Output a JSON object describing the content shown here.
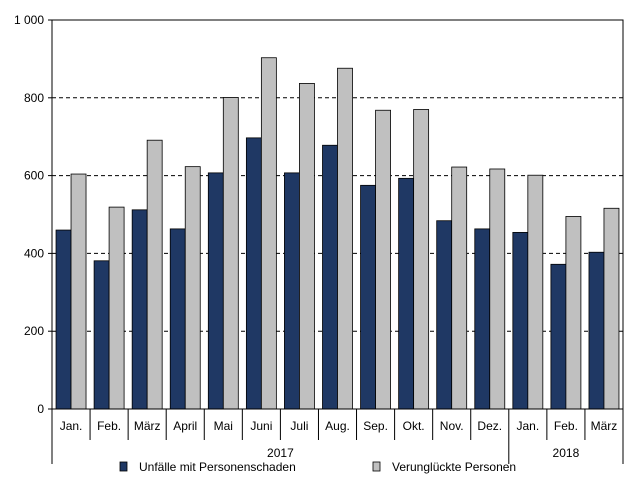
{
  "chart_data": {
    "type": "bar",
    "categories": [
      "Jan.",
      "Feb.",
      "März",
      "April",
      "Mai",
      "Juni",
      "Juli",
      "Aug.",
      "Sep.",
      "Okt.",
      "Nov.",
      "Dez.",
      "Jan.",
      "Feb.",
      "März"
    ],
    "year_groups": [
      {
        "label": "2017",
        "count": 12
      },
      {
        "label": "2018",
        "count": 3
      }
    ],
    "series": [
      {
        "name": "Unfälle mit Personenschaden",
        "color": "#1f3864",
        "values": [
          460,
          381,
          512,
          463,
          607,
          697,
          607,
          678,
          575,
          593,
          484,
          463,
          454,
          372,
          403
        ]
      },
      {
        "name": "Verunglückte Personen",
        "color": "#c0c0c0",
        "values": [
          604,
          519,
          691,
          623,
          801,
          903,
          837,
          876,
          768,
          770,
          622,
          617,
          601,
          495,
          516
        ]
      }
    ],
    "yticks": [
      "0",
      "200",
      "400",
      "600",
      "800",
      "1 000"
    ],
    "ylim": [
      0,
      1000
    ],
    "grid": true,
    "legend": "bottom"
  }
}
